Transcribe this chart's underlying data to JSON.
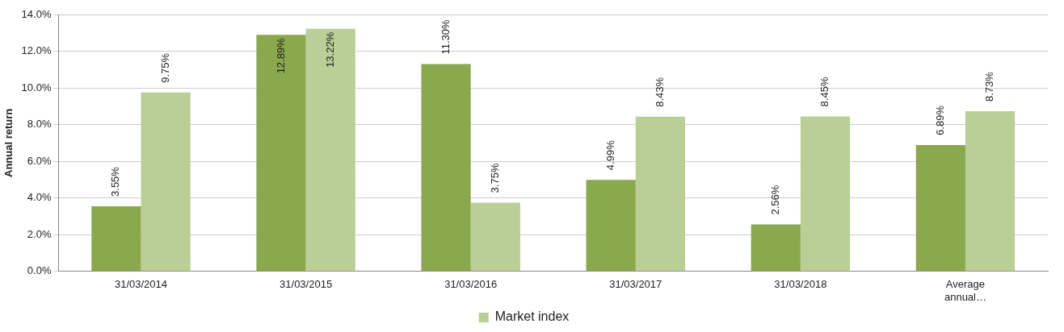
{
  "chart_data": {
    "type": "bar",
    "ylabel": "Annual return",
    "categories": [
      "31/03/2014",
      "31/03/2015",
      "31/03/2016",
      "31/03/2017",
      "31/03/2018",
      "Average annual…"
    ],
    "series": [
      {
        "color": "#8aa84e",
        "values": [
          3.55,
          12.89,
          11.3,
          4.99,
          2.56,
          6.89
        ],
        "value_labels": [
          "3.55%",
          "12.89%",
          "11.30%",
          "4.99%",
          "2.56%",
          "6.89%"
        ]
      },
      {
        "name": "Market index",
        "color": "#b9cf96",
        "values": [
          9.75,
          13.22,
          3.75,
          8.43,
          8.45,
          8.73
        ],
        "value_labels": [
          "9.75%",
          "13.22%",
          "3.75%",
          "8.43%",
          "8.45%",
          "8.73%"
        ]
      }
    ],
    "ylim": [
      0,
      14
    ],
    "yticks": [
      {
        "value": 0,
        "label": "0.0%"
      },
      {
        "value": 2,
        "label": "2.0%"
      },
      {
        "value": 4,
        "label": "4.0%"
      },
      {
        "value": 6,
        "label": "6.0%"
      },
      {
        "value": 8,
        "label": "8.0%"
      },
      {
        "value": 10,
        "label": "10.0%"
      },
      {
        "value": 12,
        "label": "12.0%"
      },
      {
        "value": 14,
        "label": "14.0%"
      }
    ],
    "grid": "y",
    "legend": "bottom"
  }
}
